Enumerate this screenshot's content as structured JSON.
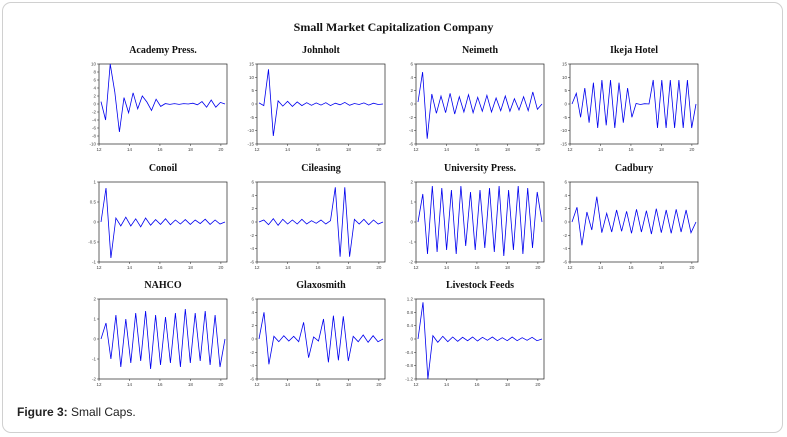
{
  "figure": {
    "title": "Small Market Capitalization Company",
    "caption_label": "Figure 3:",
    "caption_text": " Small Caps."
  },
  "colors": {
    "series": "#0000ee",
    "axis": "#222222"
  },
  "chart_data": [
    {
      "type": "line",
      "title": "Academy Press.",
      "ylim": [
        -10,
        10
      ],
      "yticks": [
        -10,
        -8,
        -6,
        -4,
        -2,
        0,
        2,
        4,
        6,
        8,
        10
      ],
      "xticks": [
        "12",
        "14",
        "16",
        "18",
        "20"
      ],
      "xlim": [
        12,
        20.4
      ],
      "grid": false,
      "series": [
        {
          "values": [
            0.6,
            -4,
            10,
            3,
            -7,
            1.6,
            -2.2,
            2.8,
            -1.2,
            2,
            0.5,
            -1.6,
            1.2,
            -0.6,
            0.1,
            -0.1,
            0.1,
            -0.1,
            0.1,
            0,
            0.2,
            -0.2,
            0.6,
            -0.8,
            1,
            -0.8,
            0.4,
            0
          ]
        }
      ]
    },
    {
      "type": "line",
      "title": "Johnholt",
      "ylim": [
        -15,
        15
      ],
      "yticks": [
        -15,
        -10,
        -5,
        0,
        5,
        10,
        15
      ],
      "xticks": [
        "12",
        "14",
        "16",
        "18",
        "20"
      ],
      "xlim": [
        12,
        20.4
      ],
      "grid": false,
      "series": [
        {
          "values": [
            0.4,
            -0.6,
            13,
            -12,
            1.2,
            -0.8,
            1,
            -0.9,
            0.8,
            -0.6,
            0.5,
            -0.5,
            0.4,
            -0.4,
            0.5,
            -0.6,
            0.3,
            -0.3,
            0.6,
            -0.5,
            0.2,
            -0.2,
            0.4,
            -0.4,
            0.3,
            -0.2,
            0
          ]
        }
      ]
    },
    {
      "type": "line",
      "title": "Neimeth",
      "ylim": [
        -6,
        6
      ],
      "yticks": [
        -6,
        -4,
        -2,
        0,
        2,
        4,
        6
      ],
      "xticks": [
        "12",
        "14",
        "16",
        "18",
        "20"
      ],
      "xlim": [
        12,
        20.4
      ],
      "grid": false,
      "series": [
        {
          "values": [
            0.3,
            4.8,
            -5.2,
            1.5,
            -1.4,
            1.2,
            -1.3,
            1.6,
            -1.5,
            1.1,
            -1.2,
            1.4,
            -1.3,
            1,
            -1.1,
            1.3,
            -1.2,
            0.9,
            -1,
            1.2,
            -1.1,
            0.8,
            -0.9,
            1.1,
            -1,
            1.8,
            -0.8,
            0
          ]
        }
      ]
    },
    {
      "type": "line",
      "title": "Ikeja Hotel",
      "ylim": [
        -15,
        15
      ],
      "yticks": [
        -15,
        -10,
        -5,
        0,
        5,
        10,
        15
      ],
      "xticks": [
        "12",
        "14",
        "16",
        "18",
        "20"
      ],
      "xlim": [
        12,
        20.4
      ],
      "grid": false,
      "series": [
        {
          "values": [
            0,
            4,
            -5,
            6,
            -7,
            8,
            -9,
            9,
            -8,
            9,
            -9,
            8,
            -7,
            6,
            -5,
            0.2,
            -0.2,
            0.1,
            0,
            9,
            -9,
            9,
            -9,
            9,
            -9,
            9,
            -9,
            9,
            -9,
            0
          ]
        }
      ]
    },
    {
      "type": "line",
      "title": "Conoil",
      "ylim": [
        -1,
        1
      ],
      "yticks": [
        -1,
        -0.5,
        0,
        0.5,
        1
      ],
      "xticks": [
        "12",
        "14",
        "16",
        "18",
        "20"
      ],
      "xlim": [
        12,
        20.4
      ],
      "grid": false,
      "series": [
        {
          "values": [
            0,
            0.85,
            -0.9,
            0.1,
            -0.1,
            0.12,
            -0.1,
            0.08,
            -0.12,
            0.1,
            -0.08,
            0.06,
            -0.06,
            0.08,
            -0.07,
            0.05,
            -0.05,
            0.06,
            -0.06,
            0.05,
            -0.04,
            0.07,
            -0.06,
            0.05,
            -0.05,
            0
          ]
        }
      ]
    },
    {
      "type": "line",
      "title": "Cileasing",
      "ylim": [
        -6,
        6
      ],
      "yticks": [
        -6,
        -4,
        -2,
        0,
        2,
        4,
        6
      ],
      "xticks": [
        "12",
        "14",
        "16",
        "18",
        "20"
      ],
      "xlim": [
        12,
        20.4
      ],
      "grid": false,
      "series": [
        {
          "values": [
            0,
            0.3,
            -0.4,
            0.5,
            -0.5,
            0.4,
            -0.3,
            0.3,
            -0.3,
            0.4,
            -0.3,
            0.2,
            -0.2,
            0.3,
            -0.3,
            0.2,
            5.2,
            -5.2,
            5.2,
            -5.2,
            0.4,
            -0.3,
            0.4,
            -0.4,
            0.3,
            -0.3,
            0
          ]
        }
      ]
    },
    {
      "type": "line",
      "title": "University Press.",
      "ylim": [
        -2,
        2
      ],
      "yticks": [
        -2,
        -1,
        0,
        1,
        2
      ],
      "xticks": [
        "12",
        "14",
        "16",
        "18",
        "20"
      ],
      "xlim": [
        12,
        20.4
      ],
      "grid": false,
      "series": [
        {
          "values": [
            0,
            1.4,
            -1.6,
            1.8,
            -1.5,
            1.7,
            -1.4,
            1.6,
            -1.6,
            1.8,
            -1.2,
            1.5,
            -1.4,
            1.6,
            -1.3,
            1.7,
            -1.5,
            1.8,
            -1.7,
            1.6,
            -1.4,
            1.8,
            -1.6,
            1.7,
            -1.3,
            1.5,
            0
          ]
        }
      ]
    },
    {
      "type": "line",
      "title": "Cadbury",
      "ylim": [
        -6,
        6
      ],
      "yticks": [
        -6,
        -4,
        -2,
        0,
        2,
        4,
        6
      ],
      "xticks": [
        "12",
        "14",
        "16",
        "18",
        "20"
      ],
      "xlim": [
        12,
        20.4
      ],
      "grid": false,
      "series": [
        {
          "values": [
            0,
            2.2,
            -3.5,
            1.5,
            -1.2,
            3.8,
            -1.6,
            1.3,
            -1.5,
            1.8,
            -1.4,
            1.6,
            -1.7,
            1.9,
            -1.5,
            1.7,
            -1.8,
            2,
            -1.6,
            1.8,
            -1.7,
            1.9,
            -1.5,
            1.8,
            -1.6,
            0
          ]
        }
      ]
    },
    {
      "type": "line",
      "title": "NAHCO",
      "ylim": [
        -2,
        2
      ],
      "yticks": [
        -2,
        -1,
        0,
        1,
        2
      ],
      "xticks": [
        "12",
        "14",
        "16",
        "18",
        "20"
      ],
      "xlim": [
        12,
        20.4
      ],
      "grid": false,
      "series": [
        {
          "values": [
            0,
            0.8,
            -1,
            1.2,
            -1.4,
            1,
            -1.2,
            1.3,
            -1.1,
            1.4,
            -1.5,
            1.2,
            -1.3,
            1.1,
            -1.2,
            1.3,
            -1.4,
            1.5,
            -1.2,
            1.3,
            -1.1,
            1.4,
            -1.3,
            1.2,
            -1.4,
            0
          ]
        }
      ]
    },
    {
      "type": "line",
      "title": "Glaxosmith",
      "ylim": [
        -6,
        6
      ],
      "yticks": [
        -6,
        -4,
        -2,
        0,
        2,
        4,
        6
      ],
      "xticks": [
        "12",
        "14",
        "16",
        "18",
        "20"
      ],
      "xlim": [
        12,
        20.4
      ],
      "grid": false,
      "series": [
        {
          "values": [
            0,
            4,
            -3.8,
            0.4,
            -0.4,
            0.5,
            -0.3,
            0.4,
            -0.4,
            2.5,
            -2.8,
            0.3,
            -0.3,
            3,
            -3.5,
            3.5,
            -3.2,
            3.4,
            -3.3,
            0.4,
            -0.4,
            0.6,
            -0.5,
            0.5,
            -0.4,
            0
          ]
        }
      ]
    },
    {
      "type": "line",
      "title": "Livestock Feeds",
      "ylim": [
        -1.2,
        1.2
      ],
      "yticks": [
        -1.2,
        -0.8,
        -0.4,
        0,
        0.4,
        0.8,
        1.2
      ],
      "xticks": [
        "12",
        "14",
        "16",
        "18",
        "20"
      ],
      "xlim": [
        12,
        20.4
      ],
      "grid": false,
      "series": [
        {
          "values": [
            0,
            1.1,
            -1.2,
            0.1,
            -0.1,
            0.08,
            -0.08,
            0.06,
            -0.07,
            0.05,
            -0.05,
            0.06,
            -0.06,
            0.05,
            -0.04,
            0.06,
            -0.05,
            0.04,
            -0.05,
            0.06,
            -0.05,
            0.04,
            -0.04,
            0.05,
            -0.05,
            0
          ]
        }
      ]
    }
  ]
}
